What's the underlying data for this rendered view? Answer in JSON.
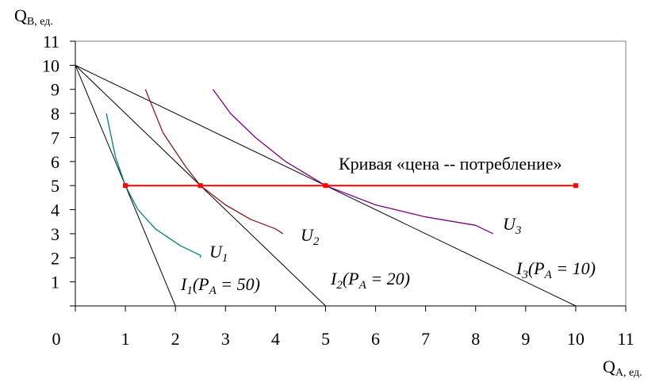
{
  "chart_data": {
    "type": "line",
    "xaxis": {
      "label_main": "Q",
      "label_sub": "A, ед.",
      "range": [
        0,
        11
      ],
      "ticks": [
        1,
        2,
        3,
        4,
        5,
        6,
        7,
        8,
        9,
        10,
        11
      ],
      "origin_label": "0"
    },
    "yaxis": {
      "label_main": "Q",
      "label_sub": "B, ед.",
      "range": [
        0,
        11
      ],
      "ticks": [
        1,
        2,
        3,
        4,
        5,
        6,
        7,
        8,
        9,
        10,
        11
      ]
    },
    "grid": false,
    "budget_lines": [
      {
        "id": "I1",
        "label_main": "I",
        "label_sub": "1",
        "label_rest": "(P",
        "label_sub2": "A",
        "label_tail": " = 50)",
        "points": [
          [
            0,
            10
          ],
          [
            2,
            0
          ]
        ],
        "color": "#000000"
      },
      {
        "id": "I2",
        "label_main": "I",
        "label_sub": "2",
        "label_rest": "(P",
        "label_sub2": "A",
        "label_tail": " = 20)",
        "points": [
          [
            0,
            10
          ],
          [
            5,
            0
          ]
        ],
        "color": "#000000"
      },
      {
        "id": "I3",
        "label_main": "I",
        "label_sub": "3",
        "label_rest": "(P",
        "label_sub2": "A",
        "label_tail": " = 10)",
        "points": [
          [
            0,
            10
          ],
          [
            10,
            0
          ]
        ],
        "color": "#000000"
      }
    ],
    "indifference_curves": [
      {
        "id": "U1",
        "label_main": "U",
        "label_sub": "1",
        "color": "#008080",
        "points": [
          [
            0.62,
            8
          ],
          [
            0.8,
            6.2
          ],
          [
            1,
            5
          ],
          [
            1.25,
            4
          ],
          [
            1.6,
            3.2
          ],
          [
            2.1,
            2.5
          ],
          [
            2.5,
            2.1
          ],
          [
            2.5,
            2.0
          ]
        ]
      },
      {
        "id": "U2",
        "label_main": "U",
        "label_sub": "2",
        "color": "#8b1a1a",
        "points": [
          [
            1.4,
            9
          ],
          [
            1.75,
            7.2
          ],
          [
            2.2,
            5.8
          ],
          [
            2.5,
            5
          ],
          [
            3,
            4.2
          ],
          [
            3.5,
            3.6
          ],
          [
            4,
            3.2
          ],
          [
            4.15,
            3.0
          ]
        ]
      },
      {
        "id": "U3",
        "label_main": "U",
        "label_sub": "3",
        "color": "#800080",
        "points": [
          [
            2.75,
            9
          ],
          [
            3.1,
            8
          ],
          [
            3.6,
            7
          ],
          [
            4.2,
            6
          ],
          [
            5,
            5
          ],
          [
            6,
            4.2
          ],
          [
            7,
            3.7
          ],
          [
            8,
            3.35
          ],
          [
            8.35,
            3.0
          ]
        ]
      }
    ],
    "price_consumption_curve": {
      "label": "Кривая «цена -- потребление»",
      "color": "#ff0000",
      "points": [
        [
          1,
          5
        ],
        [
          2.5,
          5
        ],
        [
          5,
          5
        ],
        [
          10,
          5
        ]
      ]
    }
  }
}
